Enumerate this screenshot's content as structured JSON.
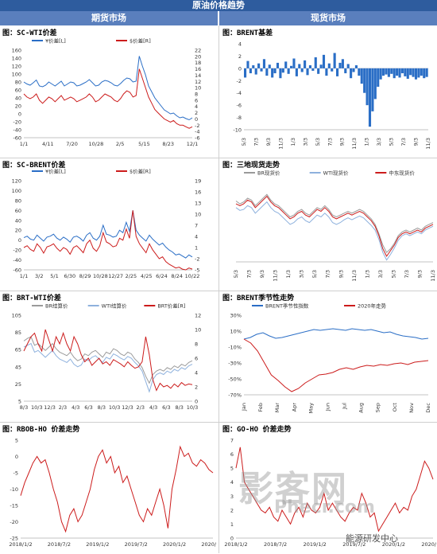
{
  "header": {
    "title": "原油价格趋势",
    "left_section": "期货市场",
    "right_section": "现货市场"
  },
  "watermark": {
    "main": "影客网",
    "sub": "Phecr.com",
    "account": "能源研发中心"
  },
  "colors": {
    "blue": "#2a6ec6",
    "red": "#cc1c1c",
    "gray": "#9a9a9a",
    "lightblue": "#8eb1dd"
  },
  "chart_data": [
    {
      "id": "sc_wti",
      "type": "line",
      "title": "图：SC-WTI价差",
      "x_ticks": [
        "1/1",
        "4/11",
        "7/20",
        "10/28",
        "2/5",
        "5/15",
        "8/23",
        "12/1"
      ],
      "y_left_ticks": [
        "160",
        "140",
        "120",
        "100",
        "80",
        "60",
        "40",
        "20",
        "0",
        "-20",
        "-40",
        "-60"
      ],
      "y_right_ticks": [
        "22",
        "20",
        "18",
        "16",
        "14",
        "12",
        "10",
        "8",
        "6",
        "4",
        "2",
        "0",
        "-2",
        "-4",
        "-6"
      ],
      "ylim_left": [
        -60,
        160
      ],
      "ylim_right": [
        -6,
        22
      ],
      "series": [
        {
          "name": "¥价差[L]",
          "axis": "left",
          "color": "blue",
          "values": [
            80,
            75,
            72,
            78,
            85,
            70,
            68,
            72,
            80,
            75,
            70,
            76,
            82,
            70,
            75,
            80,
            78,
            70,
            72,
            76,
            80,
            86,
            78,
            70,
            72,
            80,
            84,
            82,
            78,
            72,
            70,
            76,
            84,
            90,
            88,
            80,
            82,
            145,
            120,
            98,
            70,
            55,
            40,
            30,
            20,
            10,
            5,
            0,
            2,
            -5,
            -10,
            -8,
            -12,
            -15,
            -10
          ]
        },
        {
          "name": "$价差[R]",
          "axis": "right",
          "color": "red",
          "values": [
            8,
            7,
            6.5,
            7,
            8,
            6,
            5,
            6,
            7,
            6.5,
            5.5,
            6.5,
            7.5,
            6,
            6.5,
            7,
            6.5,
            5.5,
            6,
            6.5,
            7,
            8,
            7,
            5.5,
            6,
            7,
            8,
            7.5,
            7,
            6,
            5.5,
            6.5,
            8,
            9,
            8.5,
            7,
            7.5,
            16,
            13,
            10,
            7,
            5,
            3,
            2,
            1,
            0,
            -0.5,
            -1,
            -0.5,
            -1.5,
            -2,
            -2,
            -2.5,
            -3,
            -2.5
          ]
        }
      ]
    },
    {
      "id": "brent_basis",
      "type": "bar",
      "title": "图：BRENT基差",
      "x_ticks": [
        "5/3",
        "7/3",
        "9/3",
        "11/3",
        "1/3",
        "3/3",
        "5/3",
        "7/3",
        "9/3",
        "11/3",
        "1/3",
        "3/3",
        "5/3",
        "7/3",
        "9/3",
        "11/3"
      ],
      "y_ticks": [
        "4",
        "2",
        "0",
        "-2",
        "-4",
        "-6",
        "-8",
        "-10"
      ],
      "ylim": [
        -10,
        4
      ],
      "color": "blue",
      "values": [
        -1.5,
        1.2,
        -0.8,
        0.5,
        -1,
        0.8,
        -0.5,
        1.5,
        -1.2,
        0.6,
        -1.5,
        -0.8,
        0.9,
        -1.6,
        -0.7,
        1.1,
        -0.9,
        0.4,
        1.6,
        -1.3,
        0.7,
        -0.6,
        1.3,
        -1.1,
        0.5,
        -0.4,
        1.8,
        -0.9,
        0.6,
        2.2,
        -1.2,
        0.8,
        -0.5,
        2.5,
        -1.3,
        0.9,
        1.5,
        -0.8,
        0.7,
        -1.6,
        -0.6,
        0.5,
        -1.2,
        -2.5,
        -4,
        -6,
        -9.5,
        -7,
        -5,
        -3,
        -1.8,
        -1.2,
        -1,
        -1.4,
        -0.9,
        -1.6,
        -1.2,
        -1.5,
        -0.8,
        -1.3,
        -1.7,
        -1.1,
        -1.4,
        -1.8,
        -1.5,
        -1.2,
        -1.6,
        -1.4
      ]
    },
    {
      "id": "sc_brent",
      "type": "line",
      "title": "图：SC-BRENT价差",
      "x_ticks": [
        "1/1",
        "3/2",
        "5/1",
        "6/30",
        "8/29",
        "10/28",
        "12/27",
        "2/25",
        "4/25",
        "6/24",
        "8/24",
        "10/22"
      ],
      "y_left_ticks": [
        "120",
        "100",
        "80",
        "60",
        "40",
        "20",
        "0",
        "-20",
        "-40",
        "-60"
      ],
      "y_right_ticks": [
        "19",
        "16",
        "13",
        "10",
        "7",
        "4",
        "1",
        "-2",
        "-5"
      ],
      "ylim_left": [
        -60,
        120
      ],
      "ylim_right": [
        -5,
        19
      ],
      "series": [
        {
          "name": "¥价差[L]",
          "axis": "left",
          "color": "blue",
          "values": [
            5,
            8,
            2,
            0,
            10,
            4,
            -2,
            6,
            8,
            12,
            4,
            0,
            6,
            2,
            -4,
            6,
            8,
            4,
            -2,
            10,
            15,
            4,
            0,
            8,
            30,
            12,
            10,
            6,
            8,
            20,
            15,
            36,
            18,
            60,
            20,
            10,
            4,
            -2,
            10,
            2,
            -4,
            -10,
            -6,
            -14,
            -20,
            -24,
            -30,
            -28,
            -32,
            -36,
            -30,
            -34
          ]
        },
        {
          "name": "$价差[R]",
          "axis": "right",
          "color": "red",
          "values": [
            1,
            1.5,
            0.5,
            0,
            2,
            1,
            -0.5,
            1.2,
            1.5,
            2,
            0.8,
            0,
            1,
            0.5,
            -0.8,
            1,
            1.5,
            0.6,
            -0.4,
            2,
            3,
            0.8,
            0,
            1.5,
            5,
            2.5,
            2,
            1.2,
            1.5,
            3.5,
            3,
            6,
            3.5,
            11,
            4,
            2,
            0.8,
            -0.4,
            2,
            0.4,
            -0.8,
            -2,
            -1.5,
            -2.8,
            -3.5,
            -4,
            -4.5,
            -4.3,
            -4.8,
            -5,
            -4.5,
            -4.8
          ]
        }
      ]
    },
    {
      "id": "spot_prices",
      "type": "line",
      "title": "图：三地现货走势",
      "x_ticks": [
        "5/3",
        "7/3",
        "9/3",
        "11/3",
        "1/3",
        "3/3",
        "5/3",
        "7/3",
        "9/3",
        "11/3",
        "1/3",
        "3/3",
        "5/3",
        "7/3",
        "9/3",
        "11/3"
      ],
      "ylim": [
        10,
        95
      ],
      "series": [
        {
          "name": "BR现货价",
          "color": "gray",
          "values": [
            75,
            72,
            74,
            78,
            76,
            70,
            74,
            78,
            82,
            76,
            72,
            70,
            66,
            62,
            58,
            60,
            64,
            66,
            62,
            60,
            64,
            68,
            66,
            70,
            66,
            60,
            58,
            60,
            62,
            64,
            62,
            64,
            66,
            64,
            60,
            56,
            50,
            40,
            28,
            20,
            24,
            30,
            38,
            42,
            44,
            42,
            44,
            46,
            44,
            48,
            50,
            52
          ]
        },
        {
          "name": "WTI现货价",
          "color": "lightblue",
          "values": [
            68,
            65,
            66,
            70,
            68,
            62,
            66,
            70,
            74,
            68,
            64,
            62,
            58,
            54,
            50,
            52,
            56,
            58,
            54,
            52,
            56,
            60,
            58,
            62,
            58,
            52,
            50,
            52,
            55,
            57,
            55,
            57,
            59,
            57,
            53,
            49,
            44,
            34,
            20,
            12,
            18,
            25,
            33,
            38,
            40,
            38,
            40,
            42,
            40,
            44,
            46,
            48
          ]
        },
        {
          "name": "中东现货价",
          "color": "red",
          "values": [
            72,
            70,
            72,
            76,
            74,
            68,
            72,
            76,
            80,
            74,
            70,
            68,
            64,
            60,
            56,
            58,
            62,
            64,
            60,
            58,
            62,
            66,
            64,
            68,
            64,
            58,
            56,
            58,
            60,
            62,
            60,
            62,
            64,
            62,
            58,
            54,
            48,
            38,
            24,
            16,
            22,
            28,
            36,
            40,
            42,
            40,
            42,
            44,
            42,
            46,
            48,
            50
          ]
        }
      ]
    },
    {
      "id": "brt_wti",
      "type": "line",
      "title": "图：BRT-WTI价差",
      "x_ticks": [
        "8/3",
        "10/3",
        "12/3",
        "2/3",
        "4/3",
        "6/3",
        "8/3",
        "10/3",
        "12/3",
        "2/3",
        "4/3",
        "6/3",
        "8/3",
        "10/3"
      ],
      "y_left_ticks": [
        "105",
        "85",
        "65",
        "45",
        "25",
        "5"
      ],
      "y_right_ticks": [
        "12",
        "10",
        "8",
        "6",
        "4",
        "2",
        "0"
      ],
      "ylim_left": [
        5,
        105
      ],
      "ylim_right": [
        0,
        12
      ],
      "series": [
        {
          "name": "BR结算价",
          "axis": "left",
          "color": "gray",
          "values": [
            75,
            78,
            80,
            70,
            72,
            68,
            64,
            68,
            72,
            66,
            62,
            60,
            58,
            62,
            56,
            52,
            54,
            60,
            58,
            62,
            64,
            60,
            56,
            62,
            60,
            66,
            64,
            60,
            58,
            62,
            60,
            54,
            50,
            44,
            34,
            26,
            36,
            40,
            42,
            40,
            44,
            42,
            46,
            44,
            48,
            46,
            50,
            52
          ]
        },
        {
          "name": "WTI结算价",
          "axis": "left",
          "color": "lightblue",
          "values": [
            68,
            70,
            72,
            62,
            64,
            60,
            56,
            60,
            64,
            58,
            54,
            52,
            50,
            54,
            48,
            45,
            47,
            54,
            52,
            56,
            58,
            54,
            50,
            56,
            54,
            60,
            58,
            55,
            53,
            57,
            55,
            50,
            46,
            40,
            28,
            16,
            30,
            36,
            38,
            36,
            40,
            38,
            42,
            40,
            44,
            42,
            46,
            48
          ]
        },
        {
          "name": "BRT价差[R]",
          "axis": "right",
          "color": "red",
          "values": [
            7,
            8,
            9,
            9.5,
            8,
            7,
            10,
            8.5,
            7,
            9,
            8,
            9.5,
            8,
            7,
            9,
            8,
            6.5,
            5.5,
            6,
            5,
            5.5,
            6,
            5.2,
            5.5,
            5,
            5.8,
            5.5,
            5.2,
            4.8,
            5.5,
            5,
            4.6,
            4.8,
            5.5,
            9,
            6.5,
            3,
            1.5,
            2.5,
            2,
            2.2,
            1.8,
            2.4,
            2,
            2.6,
            2.2,
            2.4,
            2.3
          ]
        }
      ]
    },
    {
      "id": "brent_seasonal",
      "type": "line",
      "title": "图：BRENT季节性走势",
      "x_ticks": [
        "Jan",
        "Feb",
        "Mar",
        "Apr",
        "May",
        "Jun",
        "Jul",
        "Aug",
        "Sep",
        "Oct",
        "Nov",
        "Dec"
      ],
      "y_ticks": [
        "30%",
        "10%",
        "-10%",
        "-30%",
        "-50%",
        "-70%"
      ],
      "ylim": [
        -70,
        30
      ],
      "series": [
        {
          "name": "BRENT季节性指数",
          "color": "blue",
          "values": [
            0,
            2,
            6,
            8,
            4,
            1,
            2,
            4,
            6,
            8,
            10,
            12,
            11,
            12,
            13,
            12,
            11,
            13,
            12,
            11,
            12,
            10,
            8,
            9,
            6,
            4,
            3,
            2,
            0,
            1
          ]
        },
        {
          "name": "2020年走势",
          "color": "red",
          "values": [
            0,
            -5,
            -15,
            -30,
            -45,
            -52,
            -60,
            -66,
            -62,
            -55,
            -50,
            -45,
            -44,
            -42,
            -38,
            -36,
            -38,
            -35,
            -33,
            -34,
            -32,
            -33,
            -31,
            -30,
            -32,
            -29,
            -28,
            -27
          ]
        }
      ]
    },
    {
      "id": "rbob_ho",
      "type": "line",
      "title": "图：RBOB-HO 价差走势",
      "x_ticks": [
        "2018/1/2",
        "2018/7/2",
        "2019/1/2",
        "2019/7/2",
        "2020/1/2",
        "2020/7/2"
      ],
      "y_ticks": [
        "5",
        "0",
        "-5",
        "-10",
        "-15",
        "-20",
        "-25"
      ],
      "ylim": [
        -25,
        5
      ],
      "color": "red",
      "values": [
        -12,
        -8,
        -5,
        -2,
        0,
        -2,
        -1,
        -5,
        -10,
        -14,
        -20,
        -23,
        -18,
        -16,
        -20,
        -18,
        -14,
        -10,
        -4,
        0,
        2,
        -2,
        0,
        -5,
        -3,
        -8,
        -6,
        -10,
        -14,
        -18,
        -20,
        -16,
        -18,
        -14,
        -10,
        -15,
        -22,
        -10,
        -4,
        3,
        0,
        1,
        -2,
        -3,
        -1,
        -2,
        -4,
        -5
      ]
    },
    {
      "id": "go_ho",
      "type": "line",
      "title": "图：GO-HO 价差走势",
      "x_ticks": [
        "2018/1/2",
        "2018/7/2",
        "2019/1/2",
        "2019/7/2",
        "2020/1/2",
        "2020/7/2"
      ],
      "y_ticks": [
        "7",
        "6",
        "5",
        "4",
        "3",
        "2",
        "1",
        "0"
      ],
      "ylim": [
        0,
        7
      ],
      "color": "red",
      "values": [
        5,
        6.5,
        4,
        3.5,
        3,
        2.5,
        2,
        1.8,
        2.2,
        1.5,
        1.2,
        2,
        1.5,
        1,
        1.8,
        2.2,
        1.5,
        2.5,
        2,
        1.8,
        2.2,
        3.2,
        2,
        2.5,
        2,
        1.5,
        1.2,
        1.8,
        2.2,
        2,
        3.2,
        2.5,
        1.5,
        1.8,
        0.5,
        1,
        1.5,
        2,
        2.5,
        1.8,
        2.2,
        2,
        3,
        3.5,
        4.5,
        5.5,
        5,
        4.2
      ]
    }
  ]
}
